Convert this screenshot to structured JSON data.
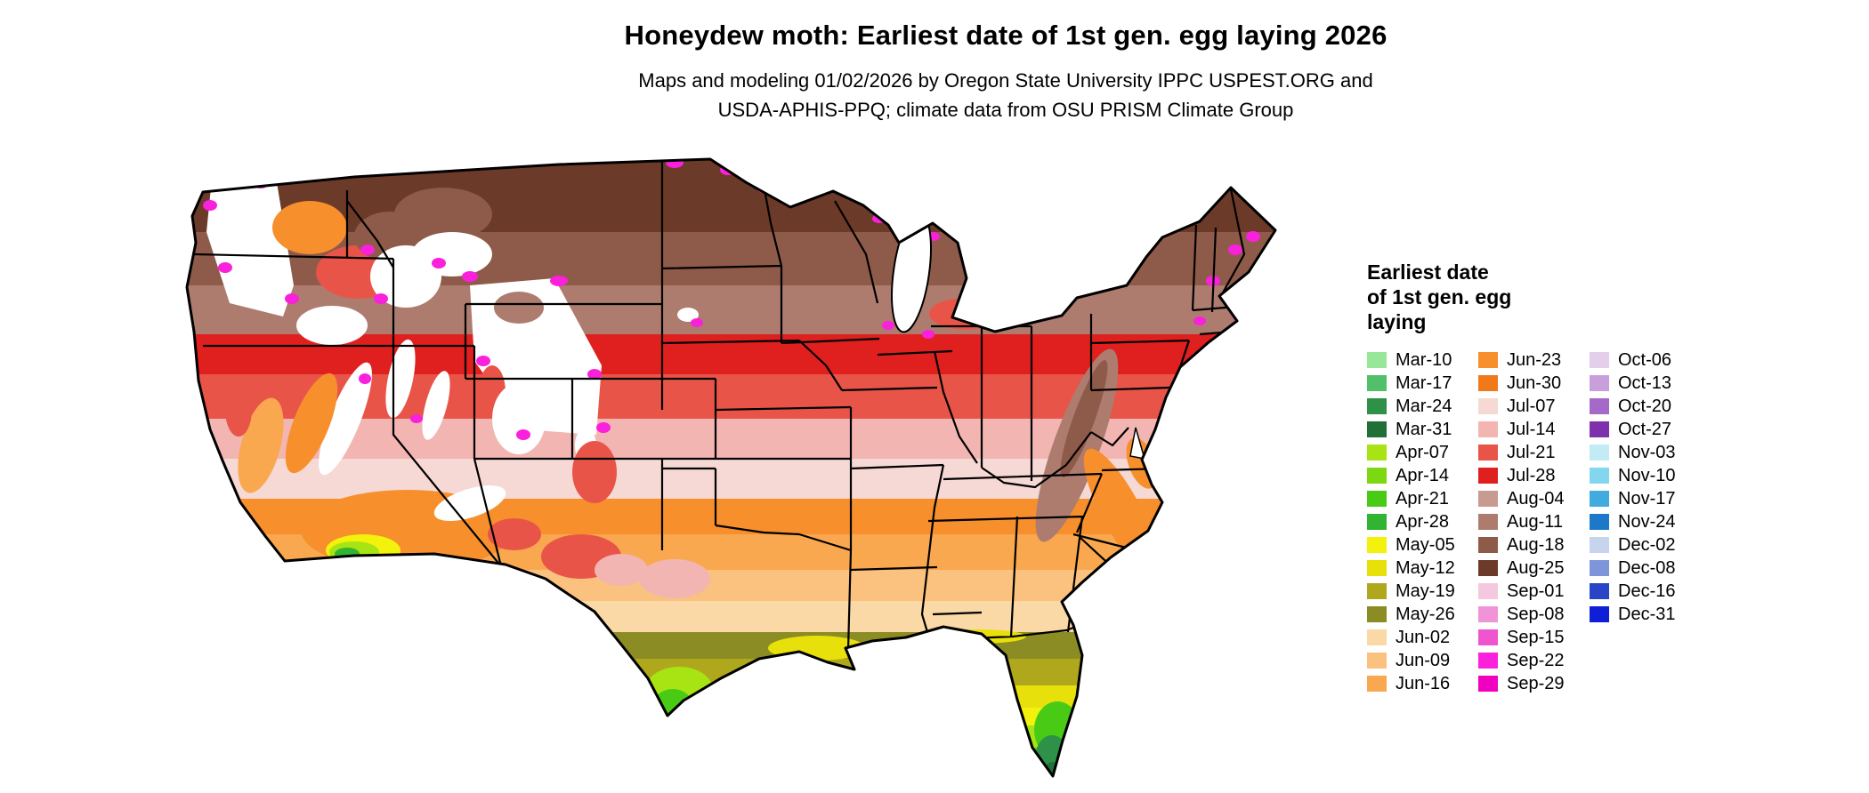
{
  "header": {
    "title": "Honeydew moth: Earliest date of 1st gen. egg laying 2026",
    "subtitle_line1": "Maps and modeling 01/02/2026 by Oregon State University IPPC USPEST.ORG and",
    "subtitle_line2": "USDA-APHIS-PPQ; climate data from OSU PRISM Climate Group"
  },
  "legend": {
    "title_lines": [
      "Earliest date",
      "of 1st gen. egg",
      "laying"
    ],
    "columns": [
      {
        "entries": [
          {
            "label": "Mar-10",
            "color": "#98E698"
          },
          {
            "label": "Mar-17",
            "color": "#52C06A"
          },
          {
            "label": "Mar-24",
            "color": "#2E9148"
          },
          {
            "label": "Mar-31",
            "color": "#207038"
          },
          {
            "label": "Apr-07",
            "color": "#A8E414"
          },
          {
            "label": "Apr-14",
            "color": "#7CD813"
          },
          {
            "label": "Apr-21",
            "color": "#49CB16"
          },
          {
            "label": "Apr-28",
            "color": "#31B431"
          },
          {
            "label": "May-05",
            "color": "#F2F20C"
          },
          {
            "label": "May-12",
            "color": "#E8E00A"
          },
          {
            "label": "May-19",
            "color": "#B0A81C"
          },
          {
            "label": "May-26",
            "color": "#8C8C24"
          },
          {
            "label": "Jun-02",
            "color": "#FAD9A6"
          },
          {
            "label": "Jun-09",
            "color": "#FAC27E"
          },
          {
            "label": "Jun-16",
            "color": "#F9A850"
          }
        ]
      },
      {
        "entries": [
          {
            "label": "Jun-23",
            "color": "#F68F2C"
          },
          {
            "label": "Jun-30",
            "color": "#F1791A"
          },
          {
            "label": "Jul-07",
            "color": "#F6D8D4"
          },
          {
            "label": "Jul-14",
            "color": "#F2B5B2"
          },
          {
            "label": "Jul-21",
            "color": "#E85548"
          },
          {
            "label": "Jul-28",
            "color": "#E01F1F"
          },
          {
            "label": "Aug-04",
            "color": "#C89B90"
          },
          {
            "label": "Aug-11",
            "color": "#AD7C6F"
          },
          {
            "label": "Aug-18",
            "color": "#8E5A49"
          },
          {
            "label": "Aug-25",
            "color": "#6C3A28"
          },
          {
            "label": "Sep-01",
            "color": "#F4C8DE"
          },
          {
            "label": "Sep-08",
            "color": "#F193D9"
          },
          {
            "label": "Sep-15",
            "color": "#EE55CE"
          },
          {
            "label": "Sep-22",
            "color": "#FA20DC"
          },
          {
            "label": "Sep-29",
            "color": "#F000C0"
          }
        ]
      },
      {
        "entries": [
          {
            "label": "Oct-06",
            "color": "#E4CFEA"
          },
          {
            "label": "Oct-13",
            "color": "#C89FDA"
          },
          {
            "label": "Oct-20",
            "color": "#A569C9"
          },
          {
            "label": "Oct-27",
            "color": "#7F30AC"
          },
          {
            "label": "Nov-03",
            "color": "#C2EBF6"
          },
          {
            "label": "Nov-10",
            "color": "#82D7EF"
          },
          {
            "label": "Nov-17",
            "color": "#41AADF"
          },
          {
            "label": "Nov-24",
            "color": "#1E78C9"
          },
          {
            "label": "Dec-02",
            "color": "#C7D4ED"
          },
          {
            "label": "Dec-08",
            "color": "#7E96D9"
          },
          {
            "label": "Dec-16",
            "color": "#2A44C6"
          },
          {
            "label": "Dec-31",
            "color": "#0F1FD8"
          }
        ]
      }
    ]
  }
}
